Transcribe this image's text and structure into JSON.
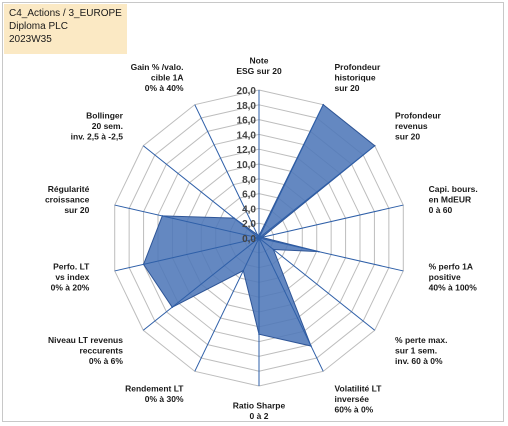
{
  "header": {
    "line1": "C4_Actions / 3_EUROPE",
    "line2": "Diploma PLC",
    "line3": "2023W35"
  },
  "chart_data": {
    "type": "radar",
    "rmin": 0,
    "rmax": 20,
    "tick_step": 2,
    "tick_labels": [
      "0,0",
      "2,0",
      "4,0",
      "6,0",
      "8,0",
      "10,0",
      "12,0",
      "14,0",
      "16,0",
      "18,0",
      "20,0"
    ],
    "grid": true,
    "legend": "none",
    "colors": {
      "fill": "#4f77b8",
      "stroke": "#2e5597",
      "grid": "#bdbdbd",
      "axis": "#2e5fa8"
    },
    "axes": [
      {
        "label": [
          "Note",
          "ESG sur 20"
        ],
        "value": 0.3
      },
      {
        "label": [
          "Profondeur",
          "historique",
          "sur 20"
        ],
        "value": 20
      },
      {
        "label": [
          "Profondeur",
          "revenus",
          "sur 20"
        ],
        "value": 20
      },
      {
        "label": [
          "Capi. bours.",
          "en MdEUR",
          "0 à 60"
        ],
        "value": 0.4
      },
      {
        "label": [
          "% perfo 1A",
          "positive",
          "40% à 100%"
        ],
        "value": 8.3
      },
      {
        "label": [
          "% perte max.",
          "sur 1 sem.",
          "inv. 60 à 0%"
        ],
        "value": 2.5
      },
      {
        "label": [
          "Volatilité LT",
          "inversée",
          "60% à 0%"
        ],
        "value": 16.2
      },
      {
        "label": [
          "Ratio Sharpe",
          "0 à 2"
        ],
        "value": 13.0
      },
      {
        "label": [
          "Rendement LT",
          "0% à 30%"
        ],
        "value": 4.9
      },
      {
        "label": [
          "Niveau LT  revenus",
          "reccurents",
          "0% à 6%"
        ],
        "value": 15.0
      },
      {
        "label": [
          "Perfo. LT",
          "vs index",
          "0% à 20%"
        ],
        "value": 16.0
      },
      {
        "label": [
          "Régularité",
          "croissance",
          "sur 20"
        ],
        "value": 13.4
      },
      {
        "label": [
          "Bollinger",
          "20 sem.",
          "inv. 2,5 à -2,5"
        ],
        "value": 4.3
      },
      {
        "label": [
          "Gain % /valo.",
          "cible 1A",
          "0% à 40%"
        ],
        "value": 0.5
      }
    ]
  }
}
